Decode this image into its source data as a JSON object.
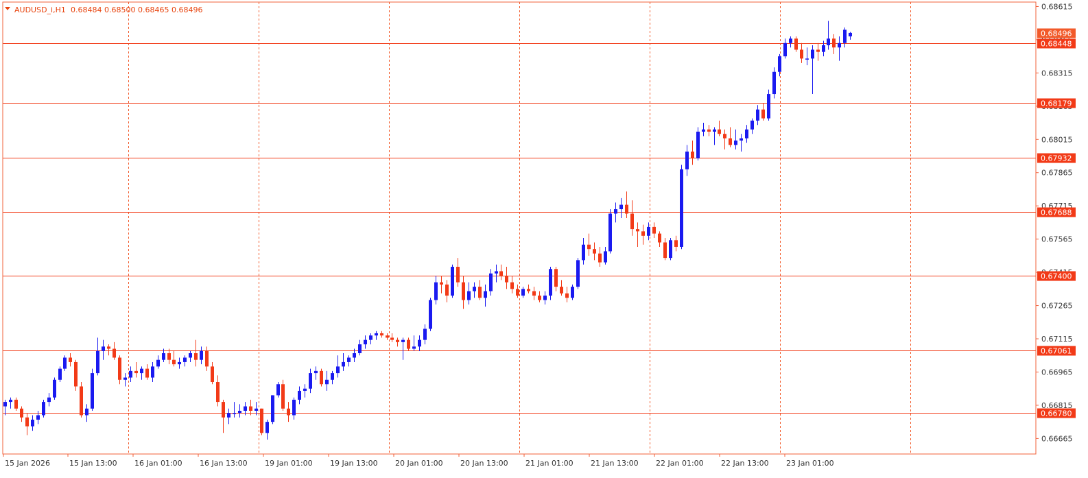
{
  "symbol_header": {
    "symbol": "AUDUSD_i,H1",
    "ohlc": "0.68484 0.68500 0.68465 0.68496"
  },
  "colors": {
    "bull": "#1a1af0",
    "bear": "#f23a17",
    "grid": "#f25a2a",
    "level": "#f23a17",
    "axis": "#f2603a",
    "current_tag": "#f25a2a",
    "level_tag": "#f23a17",
    "text": "#333333"
  },
  "chart_data": {
    "type": "candlestick",
    "symbol": "AUDUSD_i",
    "timeframe": "H1",
    "ylim": [
      0.66595,
      0.68635
    ],
    "price_labels": [
      "0.68615",
      "0.68465",
      "0.68315",
      "0.68165",
      "0.68015",
      "0.67865",
      "0.67715",
      "0.67565",
      "0.67415",
      "0.67265",
      "0.67115",
      "0.66965",
      "0.66815",
      "0.66665"
    ],
    "time_labels": [
      "15 Jan 2026",
      "15 Jan 13:00",
      "16 Jan 01:00",
      "16 Jan 13:00",
      "19 Jan 01:00",
      "19 Jan 13:00",
      "20 Jan 01:00",
      "20 Jan 13:00",
      "21 Jan 01:00",
      "21 Jan 13:00",
      "22 Jan 01:00",
      "22 Jan 13:00",
      "23 Jan 01:00"
    ],
    "horizontal_levels": [
      "0.68448",
      "0.68179",
      "0.67932",
      "0.67688",
      "0.67400",
      "0.67061",
      "0.66780"
    ],
    "current_price": "0.68496",
    "candles": [
      [
        0.6681,
        0.6684,
        0.6677,
        0.6683
      ],
      [
        0.6683,
        0.6685,
        0.668,
        0.6684
      ],
      [
        0.6684,
        0.6685,
        0.6679,
        0.668
      ],
      [
        0.668,
        0.6681,
        0.6674,
        0.6676
      ],
      [
        0.6676,
        0.6678,
        0.6668,
        0.6672
      ],
      [
        0.6672,
        0.6677,
        0.667,
        0.6675
      ],
      [
        0.6675,
        0.6679,
        0.6673,
        0.6677
      ],
      [
        0.6677,
        0.6684,
        0.6676,
        0.6683
      ],
      [
        0.6683,
        0.6687,
        0.6681,
        0.6685
      ],
      [
        0.6685,
        0.6694,
        0.6684,
        0.6693
      ],
      [
        0.6693,
        0.6699,
        0.6692,
        0.6698
      ],
      [
        0.6698,
        0.6704,
        0.6697,
        0.6703
      ],
      [
        0.6703,
        0.6705,
        0.6699,
        0.6701
      ],
      [
        0.6701,
        0.6702,
        0.6688,
        0.669
      ],
      [
        0.669,
        0.6692,
        0.6676,
        0.6677
      ],
      [
        0.6677,
        0.6682,
        0.6674,
        0.668
      ],
      [
        0.668,
        0.6698,
        0.6679,
        0.6696
      ],
      [
        0.6696,
        0.6712,
        0.6695,
        0.6706
      ],
      [
        0.6706,
        0.6711,
        0.6702,
        0.6708
      ],
      [
        0.6708,
        0.6709,
        0.6704,
        0.6707
      ],
      [
        0.6707,
        0.671,
        0.6702,
        0.6703
      ],
      [
        0.6703,
        0.6704,
        0.6691,
        0.6693
      ],
      [
        0.6693,
        0.6696,
        0.669,
        0.6694
      ],
      [
        0.6694,
        0.6699,
        0.6692,
        0.6697
      ],
      [
        0.6697,
        0.6701,
        0.6694,
        0.6696
      ],
      [
        0.6696,
        0.6699,
        0.6693,
        0.6698
      ],
      [
        0.6698,
        0.67,
        0.6693,
        0.6694
      ],
      [
        0.6694,
        0.6701,
        0.6692,
        0.6699
      ],
      [
        0.6699,
        0.6704,
        0.6698,
        0.6702
      ],
      [
        0.6702,
        0.6707,
        0.6701,
        0.6705
      ],
      [
        0.6705,
        0.6707,
        0.67,
        0.6702
      ],
      [
        0.6702,
        0.6706,
        0.6699,
        0.67
      ],
      [
        0.67,
        0.6703,
        0.6698,
        0.6701
      ],
      [
        0.6701,
        0.6704,
        0.6699,
        0.6703
      ],
      [
        0.6703,
        0.6706,
        0.6701,
        0.6705
      ],
      [
        0.6705,
        0.6711,
        0.6699,
        0.6702
      ],
      [
        0.6702,
        0.6708,
        0.67,
        0.6706
      ],
      [
        0.6706,
        0.6708,
        0.6697,
        0.6699
      ],
      [
        0.6699,
        0.6701,
        0.6691,
        0.6692
      ],
      [
        0.6692,
        0.6695,
        0.6681,
        0.6683
      ],
      [
        0.6683,
        0.6684,
        0.6669,
        0.6676
      ],
      [
        0.6676,
        0.668,
        0.6673,
        0.6678
      ],
      [
        0.6678,
        0.6683,
        0.6676,
        0.6678
      ],
      [
        0.6678,
        0.6682,
        0.6676,
        0.6679
      ],
      [
        0.6679,
        0.6683,
        0.6677,
        0.6681
      ],
      [
        0.6681,
        0.6684,
        0.6677,
        0.6679
      ],
      [
        0.6679,
        0.6683,
        0.6677,
        0.668
      ],
      [
        0.668,
        0.668,
        0.6668,
        0.6669
      ],
      [
        0.6669,
        0.6675,
        0.6666,
        0.6674
      ],
      [
        0.6674,
        0.6686,
        0.6673,
        0.6686
      ],
      [
        0.6686,
        0.6692,
        0.6685,
        0.6691
      ],
      [
        0.6691,
        0.6693,
        0.6679,
        0.668
      ],
      [
        0.668,
        0.6683,
        0.6674,
        0.6677
      ],
      [
        0.6677,
        0.6685,
        0.6675,
        0.6684
      ],
      [
        0.6684,
        0.669,
        0.6682,
        0.6688
      ],
      [
        0.6688,
        0.6691,
        0.6685,
        0.6689
      ],
      [
        0.6689,
        0.6698,
        0.6687,
        0.6696
      ],
      [
        0.6696,
        0.6699,
        0.6693,
        0.6697
      ],
      [
        0.6697,
        0.6698,
        0.669,
        0.6691
      ],
      [
        0.6691,
        0.6697,
        0.6688,
        0.6693
      ],
      [
        0.6693,
        0.6697,
        0.6691,
        0.6696
      ],
      [
        0.6696,
        0.6704,
        0.6694,
        0.6699
      ],
      [
        0.6699,
        0.6705,
        0.6697,
        0.6701
      ],
      [
        0.6701,
        0.6704,
        0.6699,
        0.6703
      ],
      [
        0.6703,
        0.6707,
        0.6701,
        0.6705
      ],
      [
        0.6705,
        0.6711,
        0.6704,
        0.6709
      ],
      [
        0.6709,
        0.6713,
        0.6707,
        0.6711
      ],
      [
        0.6711,
        0.6714,
        0.6709,
        0.6713
      ],
      [
        0.6713,
        0.6715,
        0.6711,
        0.6714
      ],
      [
        0.6714,
        0.6715,
        0.6712,
        0.6713
      ],
      [
        0.6713,
        0.6714,
        0.6711,
        0.6712
      ],
      [
        0.6712,
        0.6714,
        0.671,
        0.6711
      ],
      [
        0.6711,
        0.6712,
        0.6708,
        0.671
      ],
      [
        0.671,
        0.6712,
        0.6702,
        0.6711
      ],
      [
        0.6711,
        0.6712,
        0.6706,
        0.6707
      ],
      [
        0.6707,
        0.6713,
        0.6706,
        0.6708
      ],
      [
        0.6708,
        0.6713,
        0.6706,
        0.6711
      ],
      [
        0.6711,
        0.6718,
        0.6709,
        0.6716
      ],
      [
        0.6716,
        0.673,
        0.6715,
        0.6729
      ],
      [
        0.6729,
        0.674,
        0.6727,
        0.6737
      ],
      [
        0.6737,
        0.674,
        0.6732,
        0.6736
      ],
      [
        0.6736,
        0.6738,
        0.6728,
        0.6731
      ],
      [
        0.6731,
        0.6745,
        0.673,
        0.6744
      ],
      [
        0.6744,
        0.6748,
        0.6735,
        0.6737
      ],
      [
        0.6737,
        0.674,
        0.6725,
        0.6729
      ],
      [
        0.6729,
        0.6737,
        0.6727,
        0.6733
      ],
      [
        0.6733,
        0.6737,
        0.673,
        0.6735
      ],
      [
        0.6735,
        0.6738,
        0.6729,
        0.673
      ],
      [
        0.673,
        0.6736,
        0.6726,
        0.6733
      ],
      [
        0.6733,
        0.6743,
        0.6731,
        0.6741
      ],
      [
        0.6741,
        0.6745,
        0.6737,
        0.6742
      ],
      [
        0.6742,
        0.6745,
        0.6738,
        0.674
      ],
      [
        0.674,
        0.6744,
        0.6734,
        0.6737
      ],
      [
        0.6737,
        0.674,
        0.6732,
        0.6734
      ],
      [
        0.6734,
        0.6736,
        0.673,
        0.6731
      ],
      [
        0.6731,
        0.6735,
        0.673,
        0.6734
      ],
      [
        0.6734,
        0.6736,
        0.6732,
        0.6733
      ],
      [
        0.6733,
        0.6735,
        0.6729,
        0.6731
      ],
      [
        0.6731,
        0.6733,
        0.6728,
        0.6729
      ],
      [
        0.6729,
        0.6733,
        0.6727,
        0.6731
      ],
      [
        0.6731,
        0.6744,
        0.6729,
        0.6743
      ],
      [
        0.6743,
        0.6744,
        0.6733,
        0.6735
      ],
      [
        0.6735,
        0.6738,
        0.6731,
        0.6732
      ],
      [
        0.6732,
        0.6735,
        0.6728,
        0.673
      ],
      [
        0.673,
        0.6736,
        0.6729,
        0.6735
      ],
      [
        0.6735,
        0.6748,
        0.6734,
        0.6747
      ],
      [
        0.6747,
        0.6757,
        0.6745,
        0.6754
      ],
      [
        0.6754,
        0.6759,
        0.6749,
        0.6752
      ],
      [
        0.6752,
        0.6755,
        0.6747,
        0.675
      ],
      [
        0.675,
        0.6753,
        0.6744,
        0.6746
      ],
      [
        0.6746,
        0.6753,
        0.6745,
        0.6751
      ],
      [
        0.6751,
        0.677,
        0.675,
        0.6768
      ],
      [
        0.6768,
        0.6773,
        0.6764,
        0.677
      ],
      [
        0.677,
        0.6775,
        0.6766,
        0.6772
      ],
      [
        0.6772,
        0.6778,
        0.6766,
        0.6768
      ],
      [
        0.6768,
        0.6774,
        0.6758,
        0.6761
      ],
      [
        0.6761,
        0.6764,
        0.6753,
        0.676
      ],
      [
        0.676,
        0.6763,
        0.6754,
        0.6758
      ],
      [
        0.6758,
        0.6764,
        0.6756,
        0.6762
      ],
      [
        0.6762,
        0.6764,
        0.6757,
        0.6759
      ],
      [
        0.6759,
        0.676,
        0.6753,
        0.6755
      ],
      [
        0.6755,
        0.6757,
        0.6747,
        0.6748
      ],
      [
        0.6748,
        0.6757,
        0.6747,
        0.6756
      ],
      [
        0.6756,
        0.6758,
        0.6751,
        0.6753
      ],
      [
        0.6753,
        0.679,
        0.6752,
        0.6788
      ],
      [
        0.6788,
        0.6799,
        0.6785,
        0.6796
      ],
      [
        0.6796,
        0.6801,
        0.679,
        0.6793
      ],
      [
        0.6793,
        0.6807,
        0.6792,
        0.6805
      ],
      [
        0.6805,
        0.6809,
        0.6803,
        0.6806
      ],
      [
        0.6806,
        0.6808,
        0.6803,
        0.6805
      ],
      [
        0.6805,
        0.6807,
        0.6799,
        0.6806
      ],
      [
        0.6806,
        0.681,
        0.6803,
        0.6804
      ],
      [
        0.6804,
        0.6806,
        0.6797,
        0.6802
      ],
      [
        0.6802,
        0.6807,
        0.6798,
        0.6799
      ],
      [
        0.6799,
        0.6806,
        0.6797,
        0.6801
      ],
      [
        0.6801,
        0.6804,
        0.6796,
        0.6802
      ],
      [
        0.6802,
        0.6808,
        0.68,
        0.6806
      ],
      [
        0.6806,
        0.6811,
        0.6804,
        0.681
      ],
      [
        0.681,
        0.6817,
        0.6808,
        0.6815
      ],
      [
        0.6815,
        0.6818,
        0.681,
        0.6811
      ],
      [
        0.6811,
        0.6824,
        0.681,
        0.6822
      ],
      [
        0.6822,
        0.6834,
        0.682,
        0.6832
      ],
      [
        0.6832,
        0.684,
        0.683,
        0.6839
      ],
      [
        0.6839,
        0.6847,
        0.6838,
        0.6845
      ],
      [
        0.6845,
        0.6848,
        0.6843,
        0.6847
      ],
      [
        0.6847,
        0.6848,
        0.6841,
        0.6842
      ],
      [
        0.6842,
        0.6845,
        0.6836,
        0.6838
      ],
      [
        0.6838,
        0.6843,
        0.6835,
        0.6838
      ],
      [
        0.6838,
        0.6844,
        0.6822,
        0.6842
      ],
      [
        0.6842,
        0.6845,
        0.6837,
        0.6841
      ],
      [
        0.6841,
        0.6846,
        0.6839,
        0.6844
      ],
      [
        0.6844,
        0.6855,
        0.6842,
        0.6847
      ],
      [
        0.6847,
        0.6849,
        0.684,
        0.6843
      ],
      [
        0.6843,
        0.6848,
        0.6837,
        0.6845
      ],
      [
        0.6845,
        0.6852,
        0.6843,
        0.6851
      ],
      [
        0.6848,
        0.685,
        0.68465,
        0.68496
      ]
    ]
  }
}
